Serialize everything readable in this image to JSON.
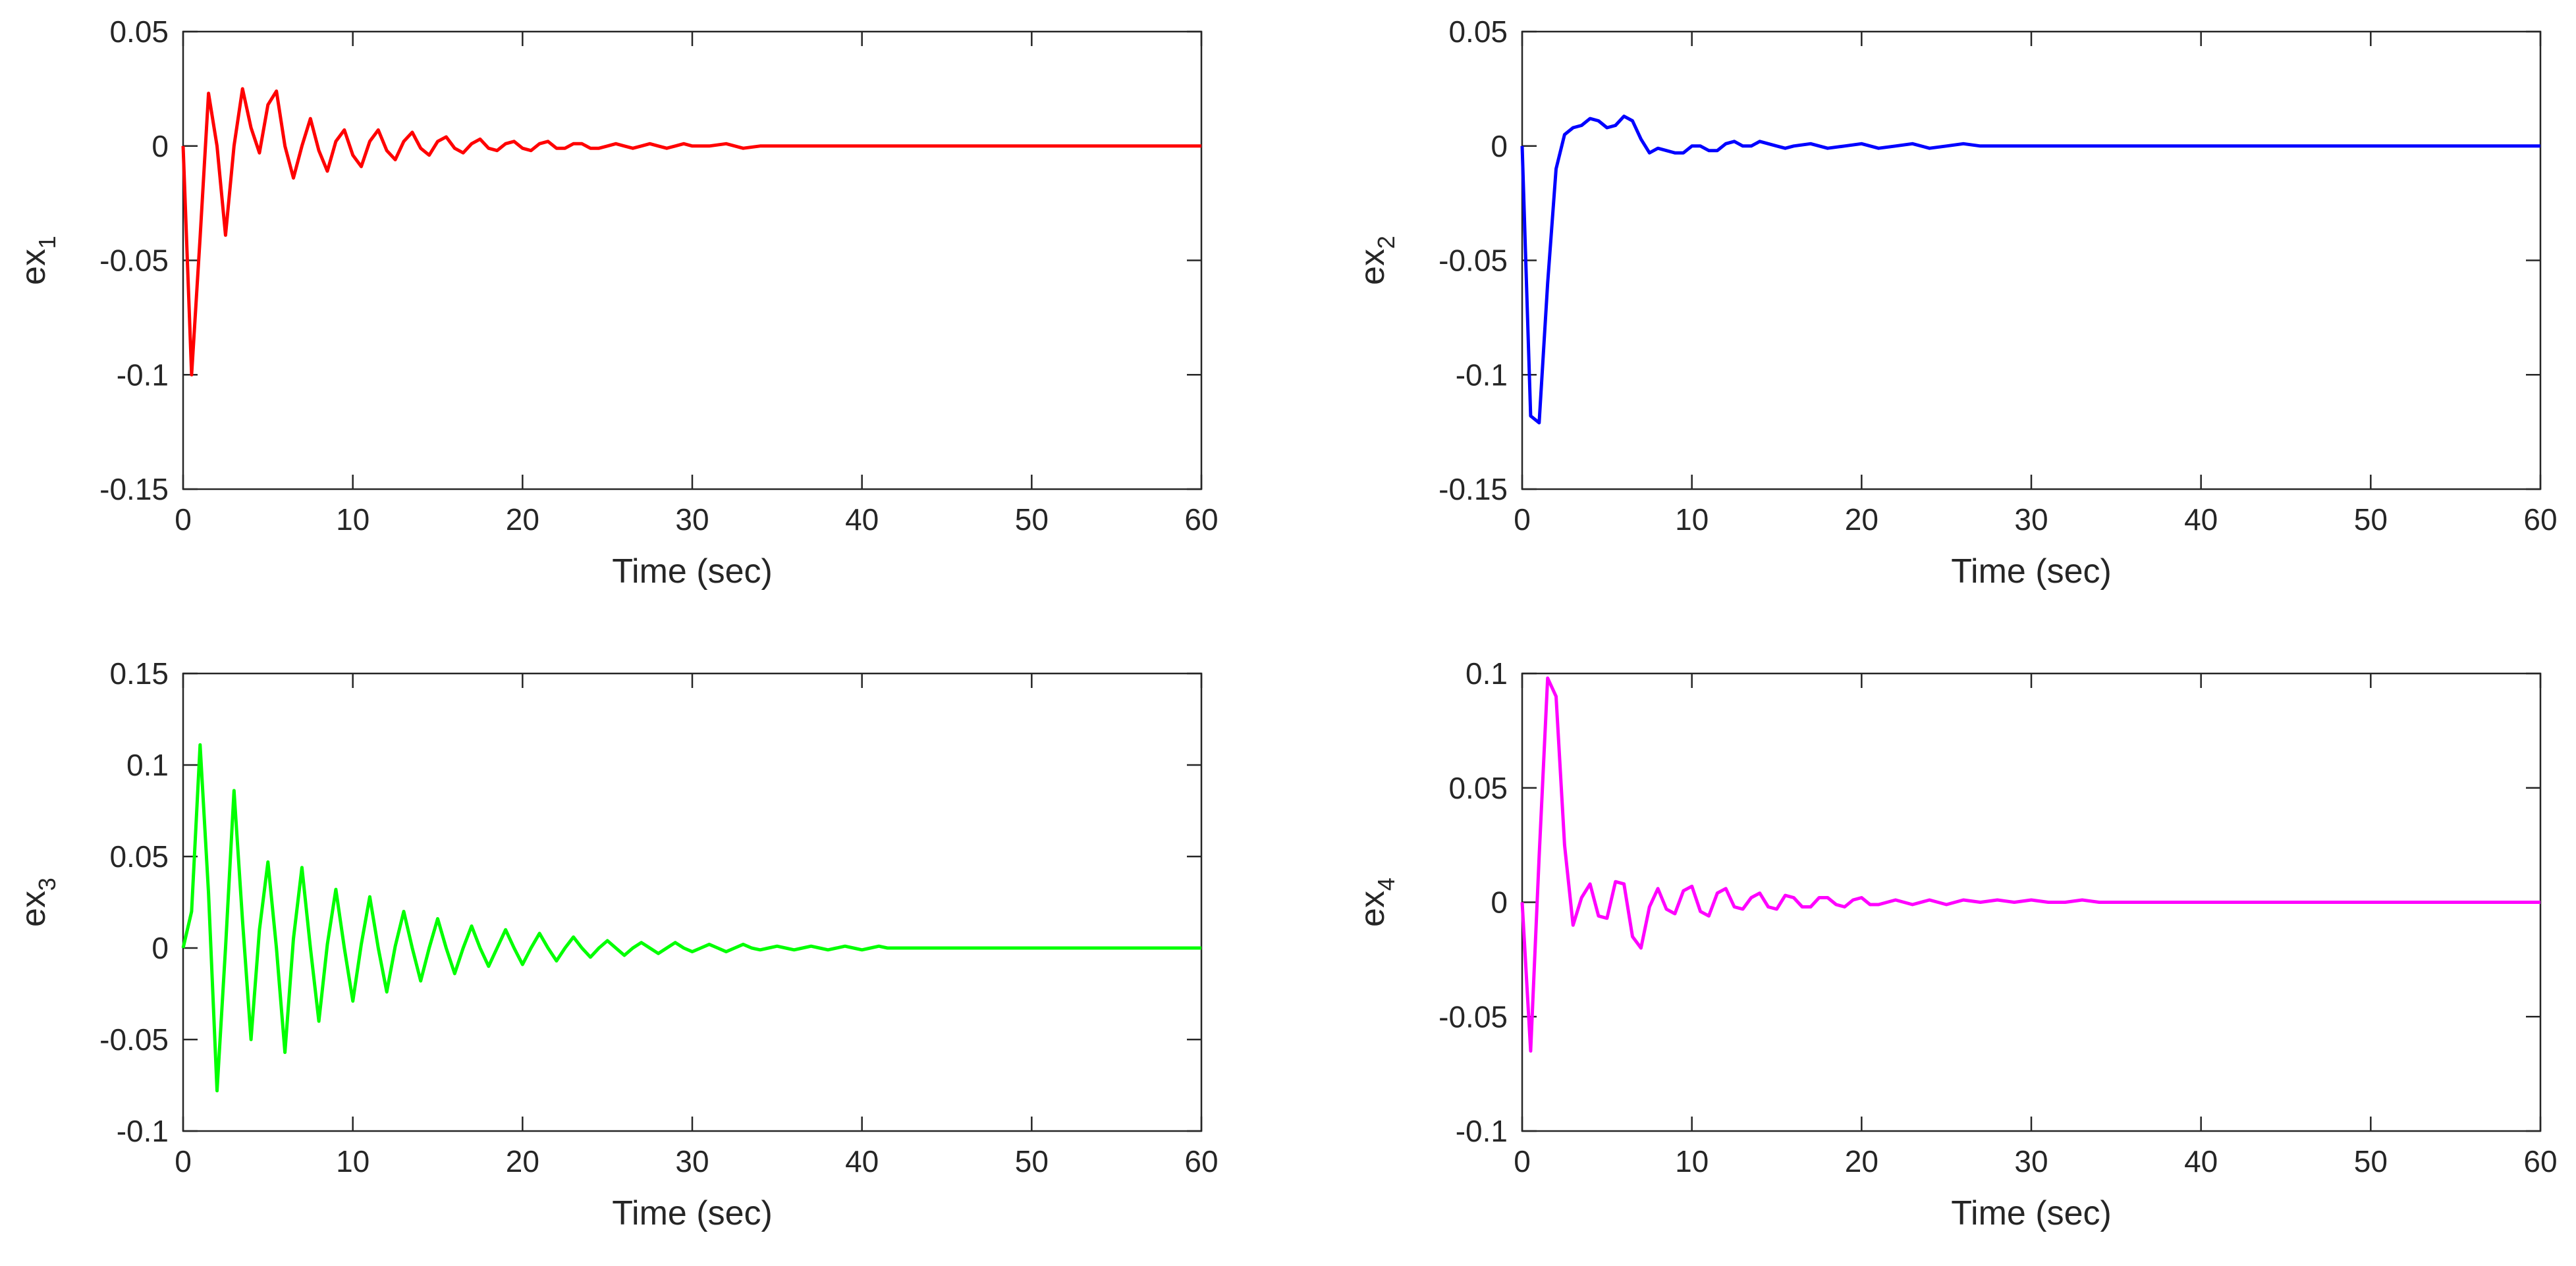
{
  "figure": {
    "layout": "2x2 grid of line plots",
    "background": "#ffffff"
  },
  "chart_data": [
    {
      "id": "ex1",
      "type": "line",
      "title": "",
      "xlabel": "Time (sec)",
      "ylabel_main": "ex",
      "ylabel_sub": "1",
      "xlim": [
        0,
        60
      ],
      "ylim": [
        -0.15,
        0.05
      ],
      "xticks": [
        0,
        10,
        20,
        30,
        40,
        50,
        60
      ],
      "xtick_labels": [
        "0",
        "10",
        "20",
        "30",
        "40",
        "50",
        "60"
      ],
      "yticks": [
        -0.15,
        -0.1,
        -0.05,
        0,
        0.05
      ],
      "ytick_labels": [
        "-0.15",
        "-0.1",
        "-0.05",
        "0",
        "0.05"
      ],
      "color": "#ff0000",
      "grid": false,
      "series": [
        {
          "name": "ex1",
          "x": [
            0,
            0.5,
            1,
            1.5,
            2,
            2.5,
            3,
            3.5,
            4,
            4.5,
            5,
            5.5,
            6,
            6.5,
            7,
            7.5,
            8,
            8.5,
            9,
            9.5,
            10,
            10.5,
            11,
            11.5,
            12,
            12.5,
            13,
            13.5,
            14,
            14.5,
            15,
            15.5,
            16,
            16.5,
            17,
            17.5,
            18,
            18.5,
            19,
            19.5,
            20,
            20.5,
            21,
            21.5,
            22,
            22.5,
            23,
            23.5,
            24,
            24.5,
            25,
            25.5,
            26,
            26.5,
            27,
            27.5,
            28,
            28.5,
            29,
            29.5,
            30,
            31,
            32,
            33,
            34,
            35,
            36,
            37,
            38,
            39,
            40,
            41,
            42,
            43,
            44,
            45,
            50,
            55,
            60
          ],
          "y": [
            0,
            -0.1,
            -0.04,
            0.023,
            0,
            -0.039,
            0,
            0.025,
            0.008,
            -0.003,
            0.018,
            0.024,
            0,
            -0.014,
            0,
            0.012,
            -0.002,
            -0.011,
            0.002,
            0.007,
            -0.004,
            -0.009,
            0.002,
            0.007,
            -0.002,
            -0.006,
            0.002,
            0.006,
            -0.001,
            -0.004,
            0.002,
            0.004,
            -0.001,
            -0.003,
            0.001,
            0.003,
            -0.001,
            -0.002,
            0.001,
            0.002,
            -0.001,
            -0.002,
            0.001,
            0.002,
            -0.001,
            -0.001,
            0.001,
            0.001,
            -0.001,
            -0.001,
            0,
            0.001,
            0,
            -0.001,
            0,
            0.001,
            0,
            -0.001,
            0,
            0.001,
            0,
            0,
            0.001,
            -0.001,
            0,
            0,
            0,
            0,
            0,
            0,
            0,
            0,
            0,
            0,
            0,
            0,
            0,
            0,
            0
          ]
        }
      ]
    },
    {
      "id": "ex2",
      "type": "line",
      "title": "",
      "xlabel": "Time (sec)",
      "ylabel_main": "ex",
      "ylabel_sub": "2",
      "xlim": [
        0,
        60
      ],
      "ylim": [
        -0.15,
        0.05
      ],
      "xticks": [
        0,
        10,
        20,
        30,
        40,
        50,
        60
      ],
      "xtick_labels": [
        "0",
        "10",
        "20",
        "30",
        "40",
        "50",
        "60"
      ],
      "yticks": [
        -0.15,
        -0.1,
        -0.05,
        0,
        0.05
      ],
      "ytick_labels": [
        "-0.15",
        "-0.1",
        "-0.05",
        "0",
        "0.05"
      ],
      "color": "#0000ff",
      "grid": false,
      "series": [
        {
          "name": "ex2",
          "x": [
            0,
            0.5,
            1,
            1.5,
            2,
            2.5,
            3,
            3.5,
            4,
            4.5,
            5,
            5.5,
            6,
            6.5,
            7,
            7.5,
            8,
            8.5,
            9,
            9.5,
            10,
            10.5,
            11,
            11.5,
            12,
            12.5,
            13,
            13.5,
            14,
            14.5,
            15,
            15.5,
            16,
            17,
            18,
            19,
            20,
            21,
            22,
            23,
            24,
            25,
            26,
            27,
            28,
            29,
            30,
            32,
            35,
            40,
            45,
            50,
            55,
            60
          ],
          "y": [
            0,
            -0.118,
            -0.121,
            -0.06,
            -0.01,
            0.005,
            0.008,
            0.009,
            0.012,
            0.011,
            0.008,
            0.009,
            0.013,
            0.011,
            0.003,
            -0.003,
            -0.001,
            -0.002,
            -0.003,
            -0.003,
            0,
            0,
            -0.002,
            -0.002,
            0.001,
            0.002,
            0,
            0,
            0.002,
            0.001,
            0,
            -0.001,
            0,
            0.001,
            -0.001,
            0,
            0.001,
            -0.001,
            0,
            0.001,
            -0.001,
            0,
            0.001,
            0,
            0,
            0,
            0,
            0,
            0,
            0,
            0,
            0,
            0,
            0
          ]
        }
      ]
    },
    {
      "id": "ex3",
      "type": "line",
      "title": "",
      "xlabel": "Time (sec)",
      "ylabel_main": "ex",
      "ylabel_sub": "3",
      "xlim": [
        0,
        60
      ],
      "ylim": [
        -0.1,
        0.15
      ],
      "xticks": [
        0,
        10,
        20,
        30,
        40,
        50,
        60
      ],
      "xtick_labels": [
        "0",
        "10",
        "20",
        "30",
        "40",
        "50",
        "60"
      ],
      "yticks": [
        -0.1,
        -0.05,
        0,
        0.05,
        0.1,
        0.15
      ],
      "ytick_labels": [
        "-0.1",
        "-0.05",
        "0",
        "0.05",
        "0.1",
        "0.15"
      ],
      "color": "#00ff00",
      "grid": false,
      "series": [
        {
          "name": "ex3",
          "x": [
            0,
            0.5,
            1,
            1.5,
            2,
            2.5,
            3,
            3.5,
            4,
            4.5,
            5,
            5.5,
            6,
            6.5,
            7,
            7.5,
            8,
            8.5,
            9,
            9.5,
            10,
            10.5,
            11,
            11.5,
            12,
            12.5,
            13,
            13.5,
            14,
            14.5,
            15,
            15.5,
            16,
            16.5,
            17,
            17.5,
            18,
            18.5,
            19,
            19.5,
            20,
            20.5,
            21,
            21.5,
            22,
            22.5,
            23,
            23.5,
            24,
            24.5,
            25,
            25.5,
            26,
            26.5,
            27,
            27.5,
            28,
            28.5,
            29,
            29.5,
            30,
            30.5,
            31,
            31.5,
            32,
            32.5,
            33,
            33.5,
            34,
            34.5,
            35,
            35.5,
            36,
            36.5,
            37,
            37.5,
            38,
            38.5,
            39,
            39.5,
            40,
            40.5,
            41,
            41.5,
            42,
            43,
            44,
            45,
            46,
            47,
            48,
            49,
            50,
            52,
            55,
            60
          ],
          "y": [
            0,
            0.02,
            0.111,
            0.03,
            -0.078,
            0,
            0.086,
            0.015,
            -0.05,
            0.01,
            0.047,
            0,
            -0.057,
            0.005,
            0.044,
            0,
            -0.04,
            0.002,
            0.032,
            0,
            -0.029,
            0.002,
            0.028,
            0,
            -0.024,
            0.001,
            0.02,
            0,
            -0.018,
            0,
            0.016,
            0,
            -0.014,
            0,
            0.012,
            0,
            -0.01,
            0,
            0.01,
            0,
            -0.009,
            0,
            0.008,
            0,
            -0.007,
            0,
            0.006,
            0,
            -0.005,
            0,
            0.004,
            0,
            -0.004,
            0,
            0.003,
            0,
            -0.003,
            0,
            0.003,
            0,
            -0.002,
            0,
            0.002,
            0,
            -0.002,
            0,
            0.002,
            0,
            -0.001,
            0,
            0.001,
            0,
            -0.001,
            0,
            0.001,
            0,
            -0.001,
            0,
            0.001,
            0,
            -0.001,
            0,
            0.001,
            0,
            0,
            0,
            0,
            0,
            0,
            0,
            0,
            0,
            0,
            0,
            0,
            0
          ]
        }
      ]
    },
    {
      "id": "ex4",
      "type": "line",
      "title": "",
      "xlabel": "Time (sec)",
      "ylabel_main": "ex",
      "ylabel_sub": "4",
      "xlim": [
        0,
        60
      ],
      "ylim": [
        -0.1,
        0.1
      ],
      "xticks": [
        0,
        10,
        20,
        30,
        40,
        50,
        60
      ],
      "xtick_labels": [
        "0",
        "10",
        "20",
        "30",
        "40",
        "50",
        "60"
      ],
      "yticks": [
        -0.1,
        -0.05,
        0,
        0.05,
        0.1
      ],
      "ytick_labels": [
        "-0.1",
        "-0.05",
        "0",
        "0.05",
        "0.1"
      ],
      "color": "#ff00ff",
      "grid": false,
      "series": [
        {
          "name": "ex4",
          "x": [
            0,
            0.5,
            1,
            1.5,
            2,
            2.5,
            3,
            3.5,
            4,
            4.5,
            5,
            5.5,
            6,
            6.5,
            7,
            7.5,
            8,
            8.5,
            9,
            9.5,
            10,
            10.5,
            11,
            11.5,
            12,
            12.5,
            13,
            13.5,
            14,
            14.5,
            15,
            15.5,
            16,
            16.5,
            17,
            17.5,
            18,
            18.5,
            19,
            19.5,
            20,
            20.5,
            21,
            22,
            23,
            24,
            25,
            26,
            27,
            28,
            29,
            30,
            31,
            32,
            33,
            34,
            35,
            36,
            38,
            40,
            45,
            50,
            55,
            60
          ],
          "y": [
            0,
            -0.065,
            0.02,
            0.098,
            0.09,
            0.025,
            -0.01,
            0.002,
            0.008,
            -0.006,
            -0.007,
            0.009,
            0.008,
            -0.015,
            -0.02,
            -0.002,
            0.006,
            -0.003,
            -0.005,
            0.005,
            0.007,
            -0.004,
            -0.006,
            0.004,
            0.006,
            -0.002,
            -0.003,
            0.002,
            0.004,
            -0.002,
            -0.003,
            0.003,
            0.002,
            -0.002,
            -0.002,
            0.002,
            0.002,
            -0.001,
            -0.002,
            0.001,
            0.002,
            -0.001,
            -0.001,
            0.001,
            -0.001,
            0.001,
            -0.001,
            0.001,
            0,
            0.001,
            0,
            0.001,
            0,
            0,
            0.001,
            0,
            0,
            0,
            0,
            0,
            0,
            0,
            0,
            0
          ]
        }
      ]
    }
  ]
}
